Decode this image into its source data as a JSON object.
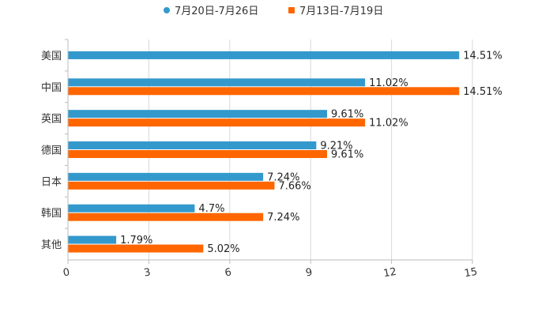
{
  "chart_data": {
    "type": "bar",
    "orientation": "horizontal",
    "categories": [
      "美国",
      "中国",
      "英国",
      "德国",
      "日本",
      "韩国",
      "其他"
    ],
    "series": [
      {
        "name": "7月20日-7月26日",
        "color": "#3399cc",
        "values": [
          14.51,
          11.02,
          9.61,
          9.21,
          7.24,
          4.7,
          1.79
        ],
        "labels": [
          "14.51%",
          "11.02%",
          "9.61%",
          "9.21%",
          "7.24%",
          "4.7%",
          "1.79%"
        ]
      },
      {
        "name": "7月13日-7月19日",
        "color": "#ff6600",
        "values": [
          null,
          14.51,
          11.02,
          9.61,
          7.66,
          7.24,
          5.02
        ],
        "labels": [
          null,
          "14.51%",
          "11.02%",
          "9.61%",
          "7.66%",
          "7.24%",
          "5.02%"
        ]
      }
    ],
    "xlim": [
      0,
      15
    ],
    "xticks": [
      "0",
      "3",
      "6",
      "9",
      "12",
      "15"
    ],
    "grid": true,
    "legend_position": "top-center"
  }
}
